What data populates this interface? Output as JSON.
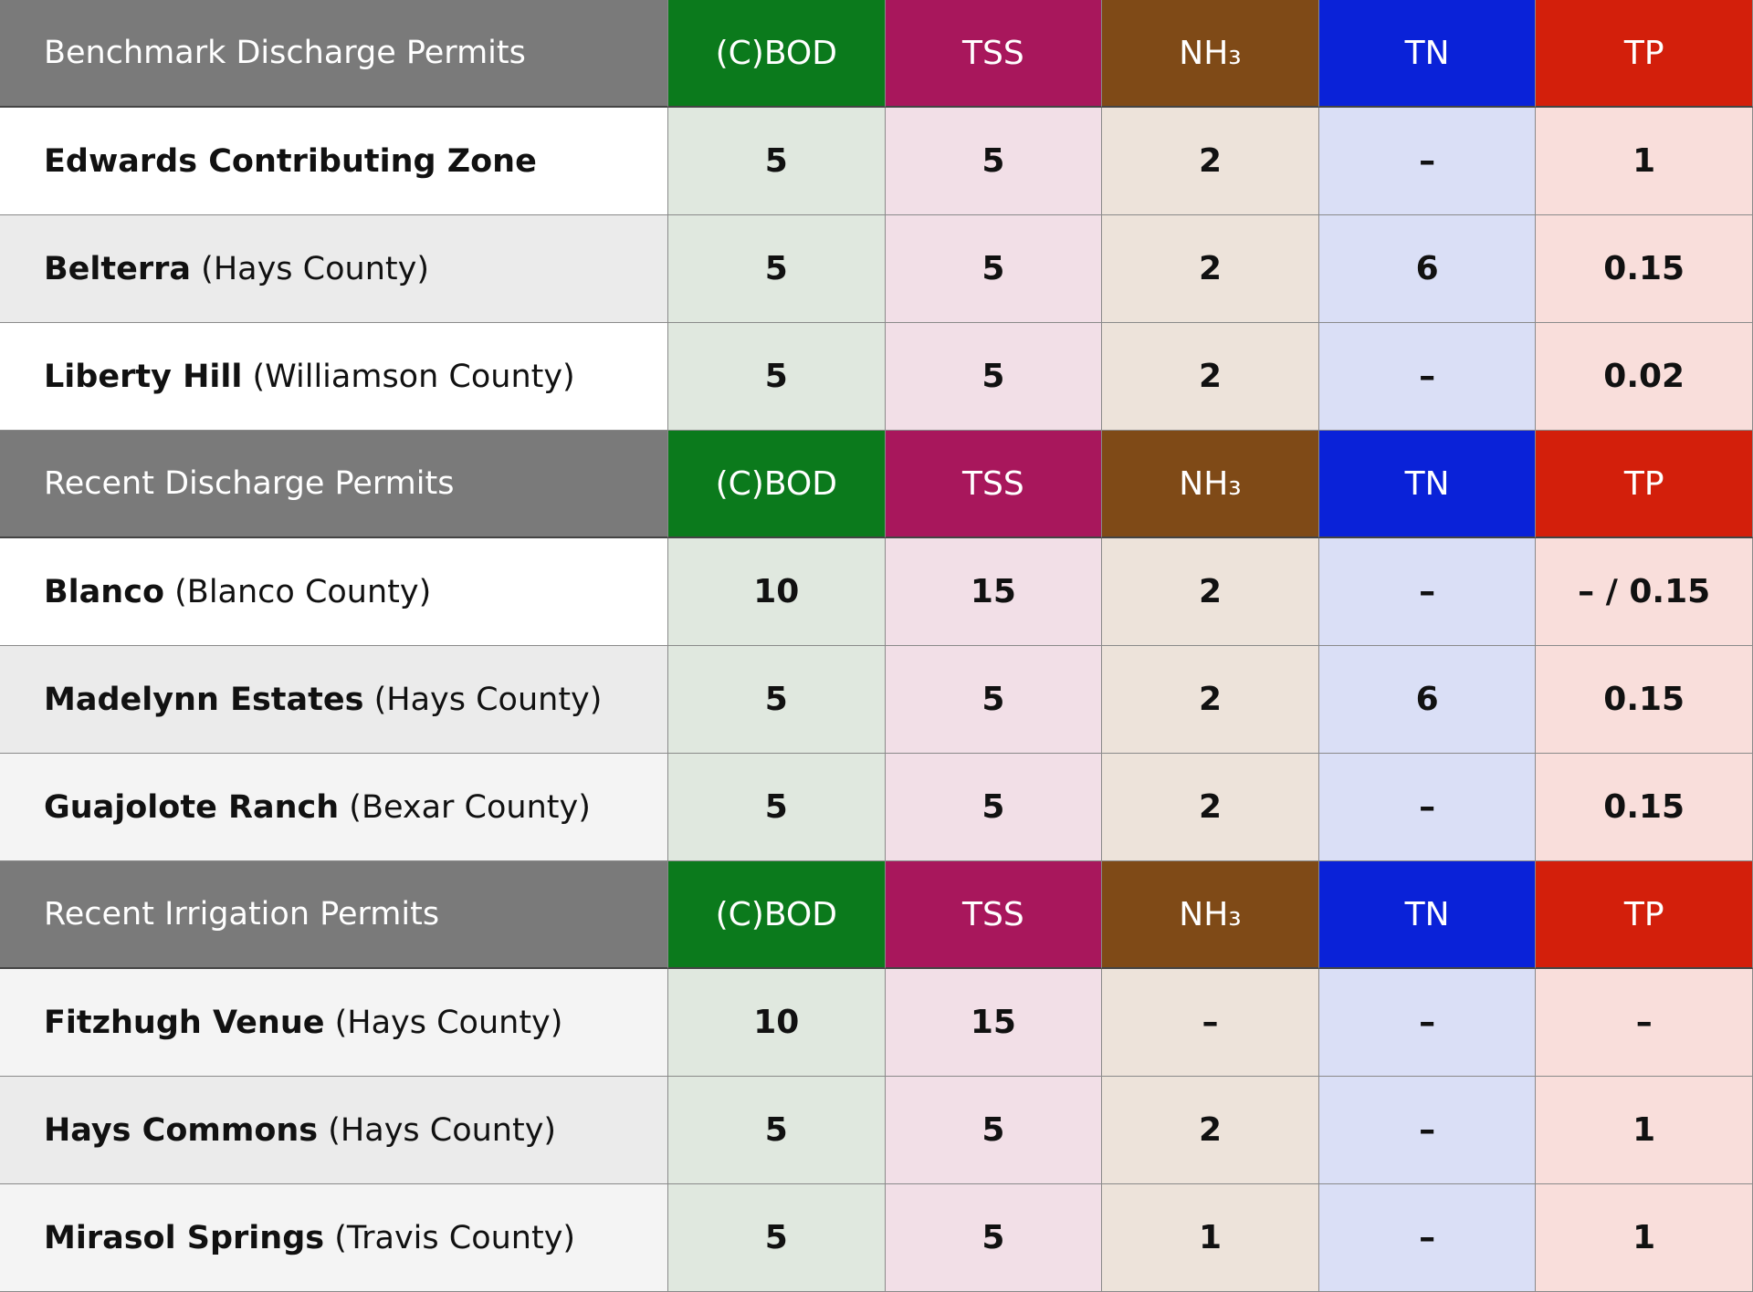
{
  "sections": [
    {
      "title": "Benchmark Discharge Permits",
      "columns": [
        "(C)BOD",
        "TSS",
        "NH₃",
        "TN",
        "TP"
      ],
      "rows": [
        {
          "name": "Edwards Contributing Zone",
          "county": null,
          "values": [
            "5",
            "5",
            "2",
            "–",
            "1"
          ]
        },
        {
          "name": "Belterra",
          "county": "(Hays County)",
          "values": [
            "5",
            "5",
            "2",
            "6",
            "0.15"
          ]
        },
        {
          "name": "Liberty Hill",
          "county": "(Williamson County)",
          "values": [
            "5",
            "5",
            "2",
            "–",
            "0.02"
          ]
        }
      ]
    },
    {
      "title": "Recent Discharge Permits",
      "columns": [
        "(C)BOD",
        "TSS",
        "NH₃",
        "TN",
        "TP"
      ],
      "rows": [
        {
          "name": "Blanco",
          "county": "(Blanco County)",
          "values": [
            "10",
            "15",
            "2",
            "–",
            "– / 0.15"
          ]
        },
        {
          "name": "Madelynn Estates",
          "county": "(Hays County)",
          "values": [
            "5",
            "5",
            "2",
            "6",
            "0.15"
          ]
        },
        {
          "name": "Guajolote Ranch",
          "county": "(Bexar County)",
          "values": [
            "5",
            "5",
            "2",
            "–",
            "0.15"
          ]
        }
      ]
    },
    {
      "title": "Recent Irrigation Permits",
      "columns": [
        "(C)BOD",
        "TSS",
        "NH₃",
        "TN",
        "TP"
      ],
      "rows": [
        {
          "name": "Fitzhugh Venue",
          "county": "(Hays County)",
          "values": [
            "10",
            "15",
            "–",
            "–",
            "–"
          ]
        },
        {
          "name": "Hays Commons",
          "county": "(Hays County)",
          "values": [
            "5",
            "5",
            "2",
            "–",
            "1"
          ]
        },
        {
          "name": "Mirasol Springs",
          "county": "(Travis County)",
          "values": [
            "5",
            "5",
            "1",
            "–",
            "1"
          ]
        }
      ]
    }
  ]
}
